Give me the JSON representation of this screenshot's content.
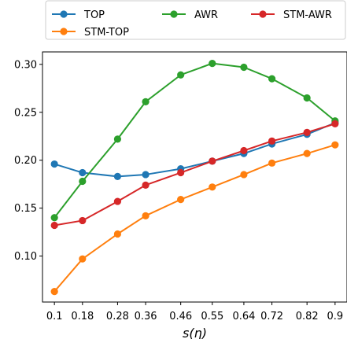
{
  "chart_data": {
    "type": "line",
    "x_tick_labels": [
      "0.1",
      "0.18",
      "0.28",
      "0.36",
      "0.46",
      "0.55",
      "0.64",
      "0.72",
      "0.82",
      "0.9"
    ],
    "x": [
      0.1,
      0.18,
      0.28,
      0.36,
      0.46,
      0.55,
      0.64,
      0.72,
      0.82,
      0.9
    ],
    "xlabel": "s(η)",
    "ylabel": "",
    "title": "",
    "xlim": [
      0.066,
      0.934
    ],
    "ylim": [
      0.052,
      0.313
    ],
    "y_ticks": [
      "0.10",
      "0.15",
      "0.20",
      "0.25",
      "0.30"
    ],
    "y_tick_values": [
      0.1,
      0.15,
      0.2,
      0.25,
      0.3
    ],
    "grid": false,
    "legend_placement": "top",
    "series": [
      {
        "name": "TOP",
        "color": "#1f77b4",
        "values": [
          0.196,
          0.187,
          0.183,
          0.185,
          0.191,
          0.199,
          0.207,
          0.217,
          0.227,
          0.239
        ]
      },
      {
        "name": "AWR",
        "color": "#2ca02c",
        "values": [
          0.14,
          0.178,
          0.222,
          0.261,
          0.289,
          0.301,
          0.297,
          0.285,
          0.265,
          0.241
        ]
      },
      {
        "name": "STM-AWR",
        "color": "#d62728",
        "values": [
          0.132,
          0.137,
          0.157,
          0.174,
          0.187,
          0.199,
          0.21,
          0.22,
          0.229,
          0.238
        ]
      },
      {
        "name": "STM-TOP",
        "color": "#ff7f0e",
        "values": [
          0.063,
          0.097,
          0.123,
          0.142,
          0.159,
          0.172,
          0.185,
          0.197,
          0.207,
          0.216
        ]
      }
    ]
  }
}
